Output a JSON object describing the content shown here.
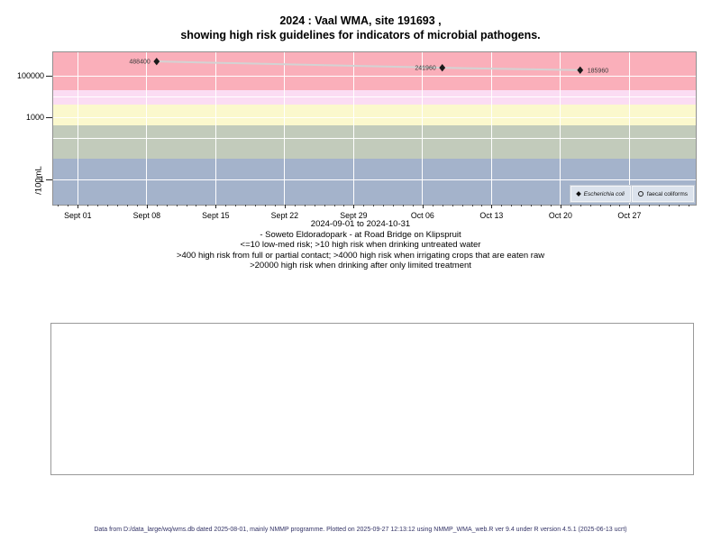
{
  "title": {
    "line1": "2024 : Vaal WMA, site 191693 ,",
    "line2": "showing high risk guidelines for indicators of microbial pathogens."
  },
  "y_axis": {
    "label": "/100mL",
    "ticks": [
      {
        "label": "100000",
        "value": 100000
      },
      {
        "label": "1000",
        "value": 1000
      },
      {
        "label": "1",
        "value": 1
      }
    ]
  },
  "x_axis": {
    "ticks": [
      {
        "label": "Sept 01",
        "day": 0
      },
      {
        "label": "Sept 08",
        "day": 7
      },
      {
        "label": "Sept 15",
        "day": 14
      },
      {
        "label": "Sept 22",
        "day": 21
      },
      {
        "label": "Sept 29",
        "day": 28
      },
      {
        "label": "Oct 06",
        "day": 35
      },
      {
        "label": "Oct 13",
        "day": 42
      },
      {
        "label": "Oct 20",
        "day": 49
      },
      {
        "label": "Oct 27",
        "day": 56
      }
    ]
  },
  "legend": [
    {
      "label": "Escherichia coli",
      "marker": "filled-diamond",
      "italic": true
    },
    {
      "label": "faecal coliforms",
      "marker": "open-circle",
      "italic": false
    }
  ],
  "captions": [
    "2024-09-01 to 2024-10-31",
    "- Soweto Eldoradopark - at Road Bridge on Klipspruit",
    "<=10 low-med risk; >10 high risk when drinking untreated water",
    ">400 high risk from full or partial contact; >4000 high risk when irrigating crops that are eaten raw",
    ">20000 high risk when drinking after only limited treatment"
  ],
  "footer": "Data from D:/data_large/wq/wms.db dated 2025-08-01, mainly NMMP programme. Plotted on 2025-09-27 12:13:12 using NMMP_WMA_web.R ver 9.4 under R version 4.5.1 (2025-06-13 ucrt)",
  "colors": {
    "band_red": "#faafba",
    "band_pink": "#fbdcf3",
    "band_yellow": "#fbf8cd",
    "band_sage": "#c2cbbb",
    "band_blue": "#a4b3cb",
    "gridline": "#ffffff",
    "series_line": "#d3d3d3",
    "marker": "#1a1a1a",
    "point_label": "#3a3a3a",
    "legend_bg": "#dbe2ec",
    "footer_text": "#333366"
  },
  "chart_data": {
    "type": "line",
    "y_scale": "log10",
    "x_range": [
      "2024-09-01",
      "2024-10-31"
    ],
    "y_tick_values": [
      1,
      1000,
      100000
    ],
    "grid_y_values": [
      1,
      100,
      1000,
      10000,
      100000
    ],
    "grid": "on",
    "legend_position": "bottom-right-inside",
    "bands": [
      {
        "from": 20000,
        "to": null,
        "color": "#faafba",
        "meaning": ">20000 high risk when drinking after only limited treatment"
      },
      {
        "from": 4000,
        "to": 20000,
        "color": "#fbdcf3",
        "meaning": ">4000 high risk when irrigating crops that are eaten raw"
      },
      {
        "from": 400,
        "to": 4000,
        "color": "#fbf8cd",
        "meaning": ">400 high risk from full or partial contact"
      },
      {
        "from": 10,
        "to": 400,
        "color": "#c2cbbb",
        "meaning": ">10 high risk when drinking untreated water"
      },
      {
        "from": null,
        "to": 10,
        "color": "#a4b3cb",
        "meaning": "<=10 low-med risk"
      }
    ],
    "series": [
      {
        "name": "Escherichia coli",
        "marker": "filled-diamond",
        "line_color": "#d3d3d3",
        "points": [
          {
            "date": "2024-09-09",
            "value": 488400,
            "label": "488400",
            "label_side": "left"
          },
          {
            "date": "2024-10-08",
            "value": 241960,
            "label": "241960",
            "label_side": "left"
          },
          {
            "date": "2024-10-22",
            "value": 185960,
            "label": "185960",
            "label_side": "right"
          }
        ]
      },
      {
        "name": "faecal coliforms",
        "marker": "open-circle",
        "points": []
      }
    ]
  }
}
